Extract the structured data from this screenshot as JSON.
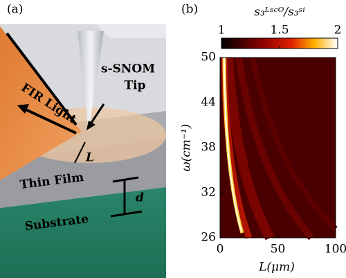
{
  "panel_a": {
    "label": "(a)",
    "tip_name": "s-SNOM",
    "tip_word": "Tip",
    "light": "FIR Light",
    "distance": "L",
    "film": "Thin Film",
    "thickness": "d",
    "substrate": "Substrate"
  },
  "chart_data": {
    "type": "heatmap",
    "label": "(b)",
    "colorbar_title": "s₃ᴸˢᶜᴼ/s₃ˢⁱ",
    "x_label": "L(μm)",
    "y_label": "ω(cm⁻¹)",
    "xlim": [
      0,
      100
    ],
    "xticks": [
      0,
      50,
      100
    ],
    "ylim": [
      26,
      50
    ],
    "yticks": [
      26,
      32,
      38,
      44,
      50
    ],
    "clim": [
      1,
      2
    ],
    "cticks": [
      1,
      1.5,
      2
    ]
  }
}
